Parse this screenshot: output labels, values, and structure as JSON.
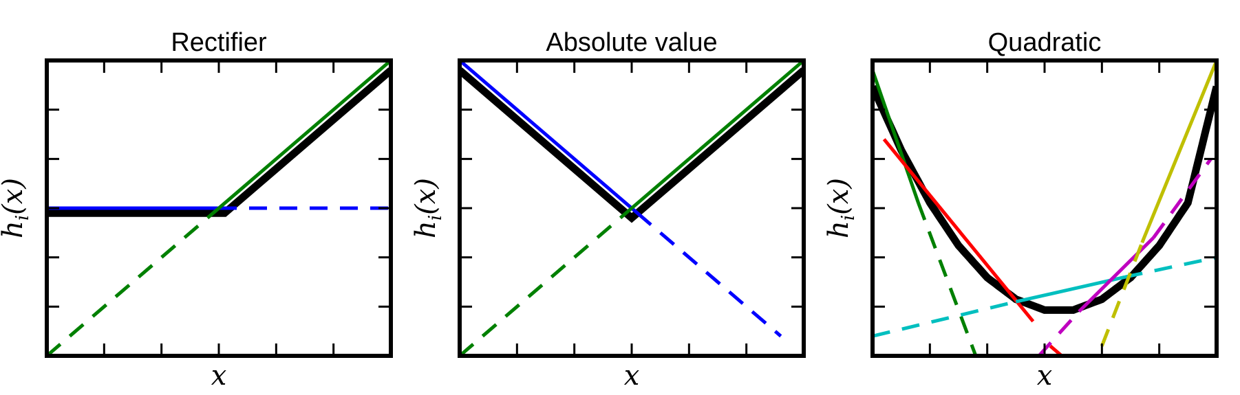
{
  "chart_data": [
    {
      "type": "line",
      "title": "Rectifier",
      "xlabel": "x",
      "ylabel": {
        "base": "h",
        "sub": "i",
        "arg": "(x)"
      },
      "xlim": [
        -3,
        3
      ],
      "ylim": [
        -3,
        3
      ],
      "grid": false,
      "series": [
        {
          "kind": "output",
          "color": "#000000",
          "style": "thick",
          "x": [
            -3,
            0.1,
            3
          ],
          "y": [
            -0.1,
            -0.1,
            2.8
          ]
        },
        {
          "kind": "linear piece",
          "color": "#0000ff",
          "style": "solid",
          "x": [
            -3,
            0
          ],
          "y": [
            0,
            0
          ]
        },
        {
          "kind": "linear piece",
          "color": "#0000ff",
          "style": "dashed",
          "x": [
            0,
            3
          ],
          "y": [
            0,
            0
          ]
        },
        {
          "kind": "linear piece",
          "color": "#008000",
          "style": "solid",
          "x": [
            -0.1,
            3
          ],
          "y": [
            -0.1,
            3
          ]
        },
        {
          "kind": "linear piece",
          "color": "#008000",
          "style": "dashed",
          "x": [
            -3,
            -0.1
          ],
          "y": [
            -3,
            -0.1
          ]
        }
      ]
    },
    {
      "type": "line",
      "title": "Absolute value",
      "xlabel": "x",
      "ylabel": {
        "base": "h",
        "sub": "i",
        "arg": "(x)"
      },
      "xlim": [
        -3,
        3
      ],
      "ylim": [
        -3,
        3
      ],
      "grid": false,
      "series": [
        {
          "kind": "output",
          "color": "#000000",
          "style": "thick",
          "x": [
            -3,
            0,
            3
          ],
          "y": [
            2.8,
            -0.2,
            2.8
          ]
        },
        {
          "kind": "linear piece",
          "color": "#0000ff",
          "style": "solid",
          "x": [
            -3,
            0.1
          ],
          "y": [
            3,
            -0.1
          ]
        },
        {
          "kind": "linear piece",
          "color": "#0000ff",
          "style": "dashed",
          "x": [
            0.1,
            2.6
          ],
          "y": [
            -0.1,
            -2.6
          ]
        },
        {
          "kind": "linear piece",
          "color": "#008000",
          "style": "solid",
          "x": [
            0,
            3
          ],
          "y": [
            0,
            3
          ]
        },
        {
          "kind": "linear piece",
          "color": "#008000",
          "style": "dashed",
          "x": [
            -3,
            0
          ],
          "y": [
            -3,
            0
          ]
        }
      ]
    },
    {
      "type": "line",
      "title": "Quadratic",
      "xlabel": "x",
      "ylabel": {
        "base": "h",
        "sub": "i",
        "arg": "(x)"
      },
      "xlim": [
        -3,
        3
      ],
      "ylim": [
        -3,
        3
      ],
      "grid": false,
      "series": [
        {
          "kind": "output",
          "color": "#000000",
          "style": "thick",
          "curve": "parabola",
          "x": [
            -3,
            -2.5,
            -2,
            -1.5,
            -1,
            -0.5,
            0,
            0.5,
            1,
            1.5,
            2,
            2.5,
            3
          ],
          "y": [
            2.47,
            1.18,
            0.11,
            -0.76,
            -1.41,
            -1.85,
            -2.07,
            -2.07,
            -1.85,
            -1.41,
            -0.76,
            0.11,
            2.47
          ]
        },
        {
          "kind": "linear piece",
          "color": "#008000",
          "style": "solid",
          "x": [
            -3,
            -2.2
          ],
          "y": [
            2.8,
            0.1
          ]
        },
        {
          "kind": "linear piece",
          "color": "#008000",
          "style": "dashed",
          "x": [
            -2.2,
            -1.2
          ],
          "y": [
            0.1,
            -3
          ]
        },
        {
          "kind": "linear piece",
          "color": "#ff0000",
          "style": "solid",
          "x": [
            -2.8,
            -0.2
          ],
          "y": [
            1.4,
            -2.3
          ]
        },
        {
          "kind": "linear piece",
          "color": "#ff0000",
          "style": "dashed",
          "x": [
            0.1,
            0.3
          ],
          "y": [
            -2.8,
            -3
          ]
        },
        {
          "kind": "linear piece",
          "color": "#00bfbf",
          "style": "solid",
          "x": [
            -0.5,
            1.4
          ],
          "y": [
            -1.9,
            -1.4
          ]
        },
        {
          "kind": "linear piece",
          "color": "#00bfbf",
          "style": "dashed",
          "x": [
            -3,
            -0.5
          ],
          "y": [
            -2.6,
            -1.9
          ]
        },
        {
          "kind": "linear piece",
          "color": "#00bfbf",
          "style": "dashed",
          "x": [
            1.4,
            3
          ],
          "y": [
            -1.4,
            -1
          ]
        },
        {
          "kind": "linear piece",
          "color": "#bf00bf",
          "style": "solid",
          "x": [
            0.6,
            1.9
          ],
          "y": [
            -2.1,
            -0.6
          ]
        },
        {
          "kind": "linear piece",
          "color": "#bf00bf",
          "style": "dashed",
          "x": [
            -0.1,
            0.6
          ],
          "y": [
            -3,
            -2.1
          ]
        },
        {
          "kind": "linear piece",
          "color": "#bf00bf",
          "style": "dashed",
          "x": [
            1.9,
            2.9
          ],
          "y": [
            -0.6,
            1.0
          ]
        },
        {
          "kind": "linear piece",
          "color": "#bfbf00",
          "style": "solid",
          "x": [
            1.7,
            3
          ],
          "y": [
            -0.7,
            3
          ]
        },
        {
          "kind": "linear piece",
          "color": "#bfbf00",
          "style": "dashed",
          "x": [
            1,
            1.7
          ],
          "y": [
            -2.8,
            -0.7
          ]
        }
      ]
    }
  ]
}
